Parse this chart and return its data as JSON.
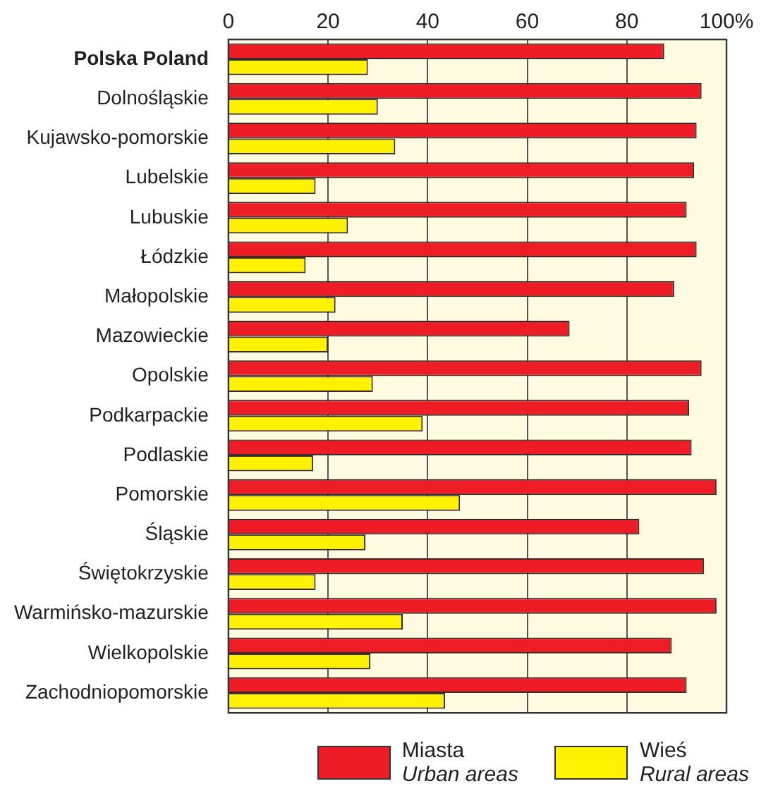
{
  "chart_data": {
    "type": "bar",
    "orientation": "horizontal",
    "categories": [
      "Polska Poland",
      "Dolnośląskie",
      "Kujawsko-pomorskie",
      "Lubelskie",
      "Lubuskie",
      "Łódzkie",
      "Małopolskie",
      "Mazowieckie",
      "Opolskie",
      "Podkarpackie",
      "Podlaskie",
      "Pomorskie",
      "Śląskie",
      "Świętokrzyskie",
      "Warmińsko-mazurskie",
      "Wielkopolskie",
      "Zachodniopomorskie"
    ],
    "series": [
      {
        "name": "Miasta\nUrban areas",
        "color": "#ee1c25",
        "values": [
          87.5,
          95,
          94,
          93.5,
          92,
          94,
          89.5,
          68.5,
          95,
          92.5,
          93,
          98,
          82.5,
          95.5,
          98,
          89,
          92
        ]
      },
      {
        "name": "Wieś\nRural areas",
        "color": "#fff200",
        "values": [
          28,
          30,
          33.5,
          17.5,
          24,
          15.5,
          21.5,
          20,
          29,
          39,
          17,
          46.5,
          27.5,
          17.5,
          35,
          28.5,
          43.5
        ]
      }
    ],
    "xlim": [
      0,
      100
    ],
    "xticks": [
      0,
      20,
      40,
      60,
      80,
      {
        "value": 100,
        "label": "100%"
      }
    ],
    "grid": "x",
    "legend": "bottom"
  }
}
